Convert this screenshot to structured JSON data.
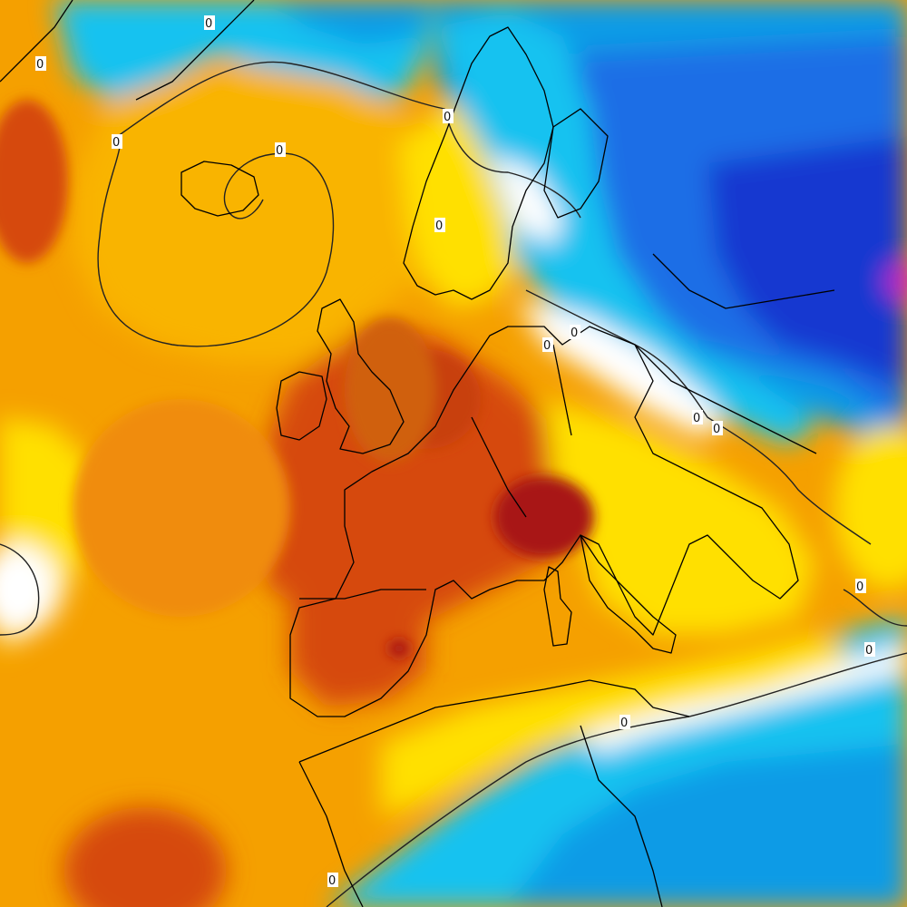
{
  "map": {
    "kind": "temperature anomaly field",
    "region": "Europe, North Atlantic and North Africa",
    "colors": {
      "dark_red": "#a81414",
      "red": "#d64a0a",
      "orange_red": "#e8640a",
      "orange": "#f08c0a",
      "amber": "#f9b400",
      "yellow": "#ffe000",
      "white": "#ffffff",
      "light_blue": "#19c2f0",
      "mid_blue": "#0f9be6",
      "blue": "#1e6ee6",
      "deep_blue": "#1438d0",
      "magenta": "#c81ec8",
      "coast": "#000000",
      "zero_contour": "#222222"
    },
    "zero_contour_labels": [
      "0",
      "0",
      "0",
      "0",
      "0",
      "0",
      "0",
      "0",
      "0",
      "0",
      "0",
      "0",
      "0",
      "0"
    ]
  }
}
